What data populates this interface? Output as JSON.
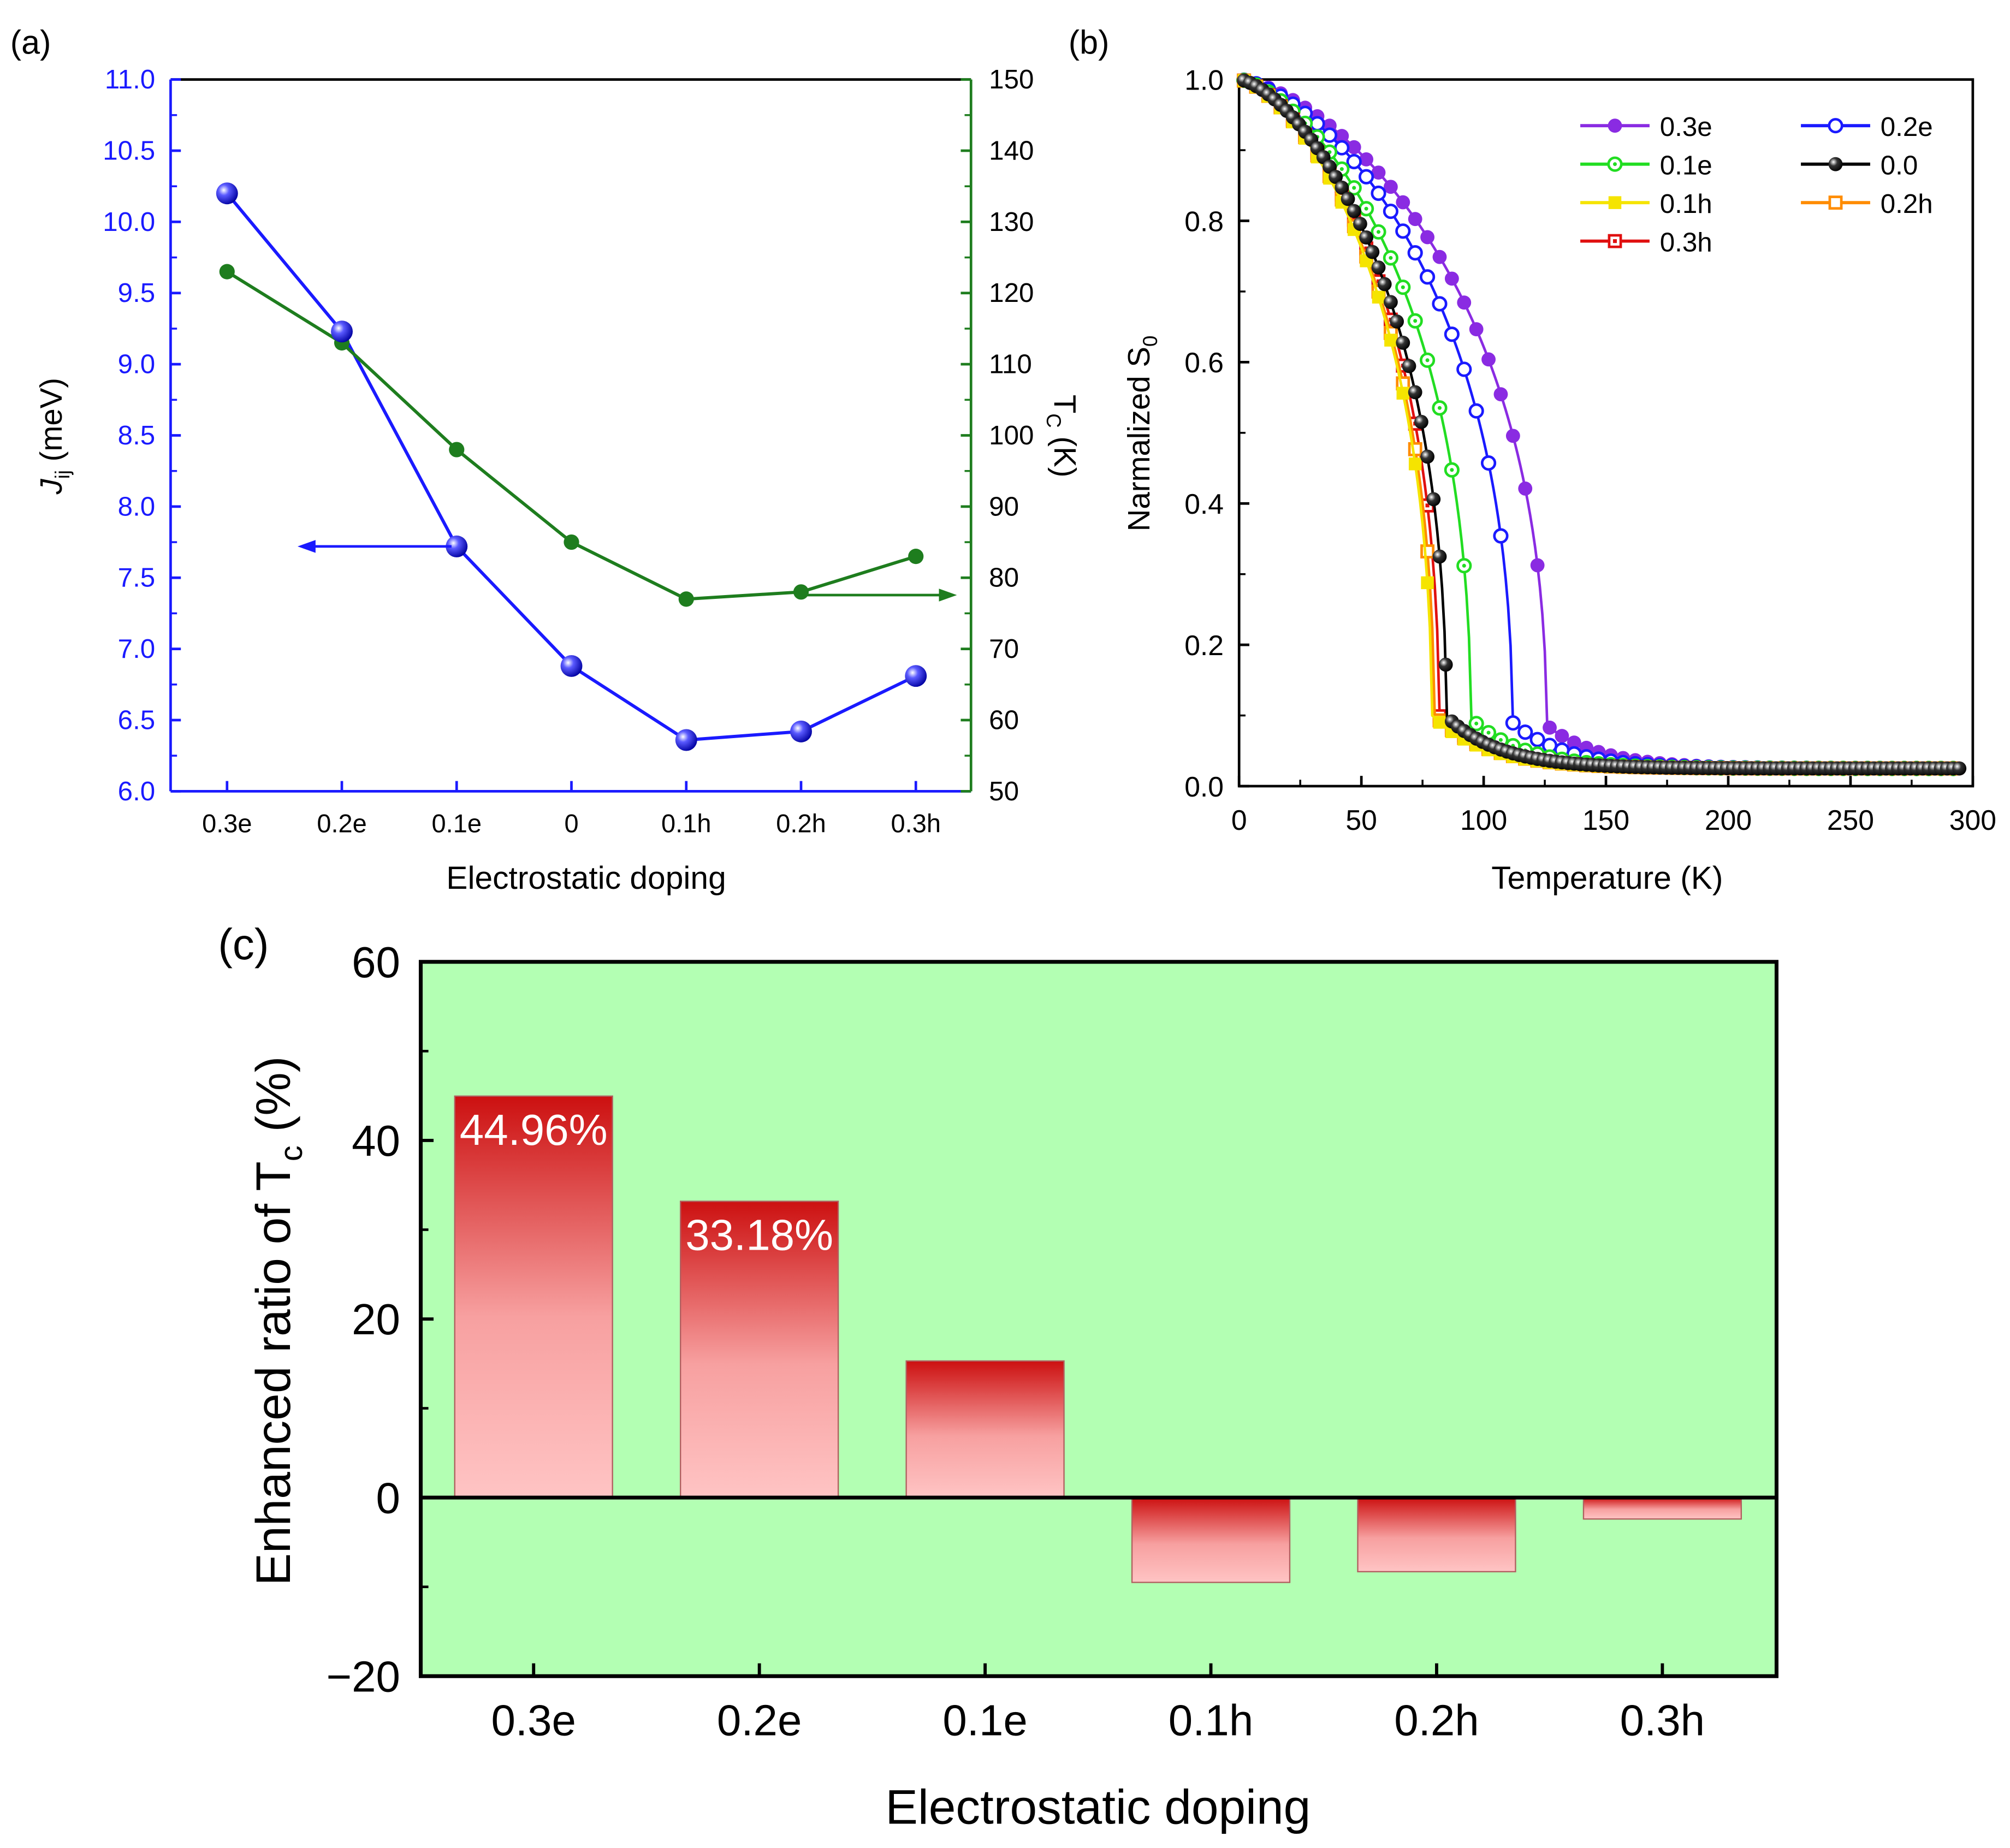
{
  "chart_data": [
    {
      "panel": "(a)",
      "type": "line",
      "xlabel": "Electrostatic doping",
      "categories": [
        "0.3e",
        "0.2e",
        "0.1e",
        "0",
        "0.1h",
        "0.2h",
        "0.3h"
      ],
      "y_left": {
        "label_main": "J",
        "label_sub": "ij",
        "label_unit": " (meV)",
        "ylim": [
          6.0,
          11.0
        ],
        "ticks": [
          "6.0",
          "6.5",
          "7.0",
          "7.5",
          "8.0",
          "8.5",
          "9.0",
          "9.5",
          "10.0",
          "10.5",
          "11.0"
        ],
        "color": "#1a1aff"
      },
      "y_right": {
        "label_main": "T",
        "label_sub": "C",
        "label_unit": " (K)",
        "ylim": [
          50,
          150
        ],
        "ticks": [
          "50",
          "60",
          "70",
          "80",
          "90",
          "100",
          "110",
          "120",
          "130",
          "140",
          "150"
        ],
        "color": "#1e7d1e"
      },
      "series": [
        {
          "name": "Jij",
          "axis": "left",
          "color": "#1a1aff",
          "values": [
            10.2,
            9.23,
            7.72,
            6.88,
            6.36,
            6.42,
            6.81
          ]
        },
        {
          "name": "Tc",
          "axis": "right",
          "color": "#1e7d1e",
          "values": [
            123,
            113,
            98,
            85,
            77,
            78,
            83
          ]
        }
      ]
    },
    {
      "panel": "(b)",
      "type": "line",
      "xlabel": "Temperature (K)",
      "ylabel_main": "Narmalized S",
      "ylabel_sub": "0",
      "xlim": [
        0,
        300
      ],
      "ylim": [
        0.0,
        1.0
      ],
      "xticks": [
        "0",
        "50",
        "100",
        "150",
        "200",
        "250",
        "300"
      ],
      "yticks": [
        "0.0",
        "0.2",
        "0.4",
        "0.6",
        "0.8",
        "1.0"
      ],
      "legend_position": "top-right",
      "series": [
        {
          "name": "0.3e",
          "color": "#8a2be2",
          "marker": "filled-circle",
          "transition_K": 126
        },
        {
          "name": "0.2e",
          "color": "#1a1aff",
          "marker": "open-circle",
          "transition_K": 112
        },
        {
          "name": "0.1e",
          "color": "#22dd22",
          "marker": "dotted-circle",
          "transition_K": 95
        },
        {
          "name": "0.0",
          "color": "#000000",
          "marker": "ball",
          "transition_K": 85
        },
        {
          "name": "0.1h",
          "color": "#f5e400",
          "marker": "filled-square",
          "transition_K": 79
        },
        {
          "name": "0.2h",
          "color": "#ff8c00",
          "marker": "open-square",
          "transition_K": 80
        },
        {
          "name": "0.3h",
          "color": "#e01010",
          "marker": "dotted-square",
          "transition_K": 82
        }
      ]
    },
    {
      "panel": "(c)",
      "type": "bar",
      "xlabel": "Electrostatic doping",
      "ylabel_main": "Enhanced ratio of T",
      "ylabel_sub": "c",
      "ylabel_unit": " (%)",
      "ylim": [
        -20,
        60
      ],
      "yticks": [
        "−20",
        "0",
        "20",
        "40",
        "60"
      ],
      "background": "#b3ffb3",
      "categories": [
        "0.3e",
        "0.2e",
        "0.1e",
        "0.1h",
        "0.2h",
        "0.3h"
      ],
      "values": [
        44.96,
        33.18,
        15.3,
        -9.5,
        -8.3,
        -2.4
      ],
      "data_labels": [
        "44.96%",
        "33.18%",
        "",
        "",
        "",
        ""
      ]
    }
  ]
}
